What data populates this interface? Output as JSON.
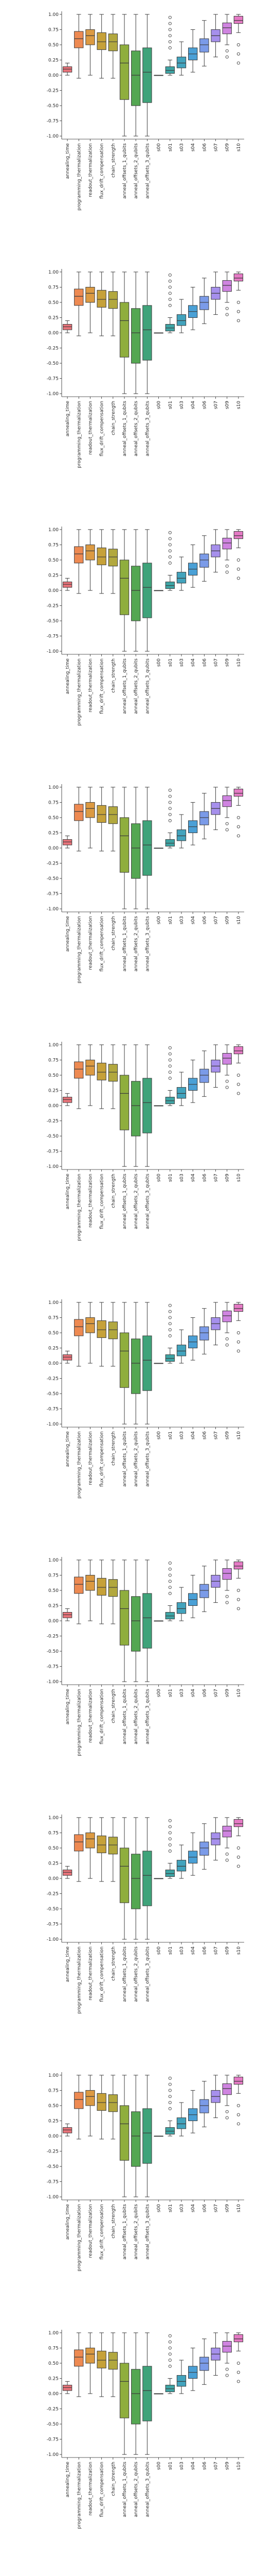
{
  "figure": {
    "yticks": [
      "1.00",
      "0.75",
      "0.50",
      "0.25",
      "0.00",
      "-0.25",
      "-0.50",
      "-0.75",
      "-1.00"
    ]
  },
  "chart_data": {
    "type": "box",
    "repeat": 10,
    "categories": [
      "annealing_time",
      "programming_thermalization",
      "readout_thermalization",
      "flux_drift_compensation",
      "chain_strength",
      "anneal_offsets_1_qubits",
      "anneal_offsets_2_qubits",
      "anneal_offsets_3_qubits",
      "s00",
      "s01",
      "s03",
      "s04",
      "s06",
      "s07",
      "s09",
      "s10"
    ],
    "colors": [
      "#e8737a",
      "#ee8a52",
      "#dc9a42",
      "#c6a139",
      "#b2a83e",
      "#8fae3d",
      "#54a752",
      "#3fa37a",
      "#3ea38f",
      "#3ea4a4",
      "#42a3bd",
      "#4aa0d6",
      "#7b9be8",
      "#a690ec",
      "#cf84e0",
      "#e47ac4"
    ],
    "yticks": [
      1.0,
      0.75,
      0.5,
      0.25,
      0.0,
      -0.25,
      -0.5,
      -0.75,
      -1.0
    ],
    "ylim": [
      -1.05,
      1.05
    ],
    "panels": [
      {
        "series": [
          {
            "min": 0.0,
            "q1": 0.05,
            "median": 0.1,
            "q3": 0.14,
            "max": 0.2
          },
          {
            "min": -0.05,
            "q1": 0.45,
            "median": 0.6,
            "q3": 0.72,
            "max": 1.0
          },
          {
            "min": 0.0,
            "q1": 0.5,
            "median": 0.65,
            "q3": 0.75,
            "max": 1.0
          },
          {
            "min": -0.05,
            "q1": 0.42,
            "median": 0.55,
            "q3": 0.7,
            "max": 1.0
          },
          {
            "min": -0.05,
            "q1": 0.4,
            "median": 0.55,
            "q3": 0.68,
            "max": 1.0
          },
          {
            "min": -1.0,
            "q1": -0.4,
            "median": 0.2,
            "q3": 0.5,
            "max": 1.0
          },
          {
            "min": -1.0,
            "q1": -0.5,
            "median": 0.0,
            "q3": 0.4,
            "max": 1.0
          },
          {
            "min": -1.0,
            "q1": -0.45,
            "median": 0.05,
            "q3": 0.45,
            "max": 1.0
          },
          {
            "min": 0.0,
            "q1": 0.0,
            "median": 0.0,
            "q3": 0.0,
            "max": 0.0
          },
          {
            "min": 0.0,
            "q1": 0.03,
            "median": 0.08,
            "q3": 0.14,
            "max": 0.25,
            "outliers": [
              0.45,
              0.55,
              0.65,
              0.75,
              0.85,
              0.95
            ]
          },
          {
            "min": 0.0,
            "q1": 0.12,
            "median": 0.2,
            "q3": 0.3,
            "max": 0.55
          },
          {
            "min": 0.05,
            "q1": 0.25,
            "median": 0.35,
            "q3": 0.45,
            "max": 0.75
          },
          {
            "min": 0.15,
            "q1": 0.38,
            "median": 0.5,
            "q3": 0.6,
            "max": 0.9
          },
          {
            "min": 0.3,
            "q1": 0.55,
            "median": 0.65,
            "q3": 0.75,
            "max": 1.0
          },
          {
            "min": 0.5,
            "q1": 0.68,
            "median": 0.78,
            "q3": 0.86,
            "max": 1.0,
            "outliers": [
              0.3,
              0.4
            ]
          },
          {
            "min": 0.7,
            "q1": 0.85,
            "median": 0.9,
            "q3": 0.97,
            "max": 1.0,
            "outliers": [
              0.2,
              0.35,
              0.5
            ]
          }
        ]
      }
    ]
  }
}
